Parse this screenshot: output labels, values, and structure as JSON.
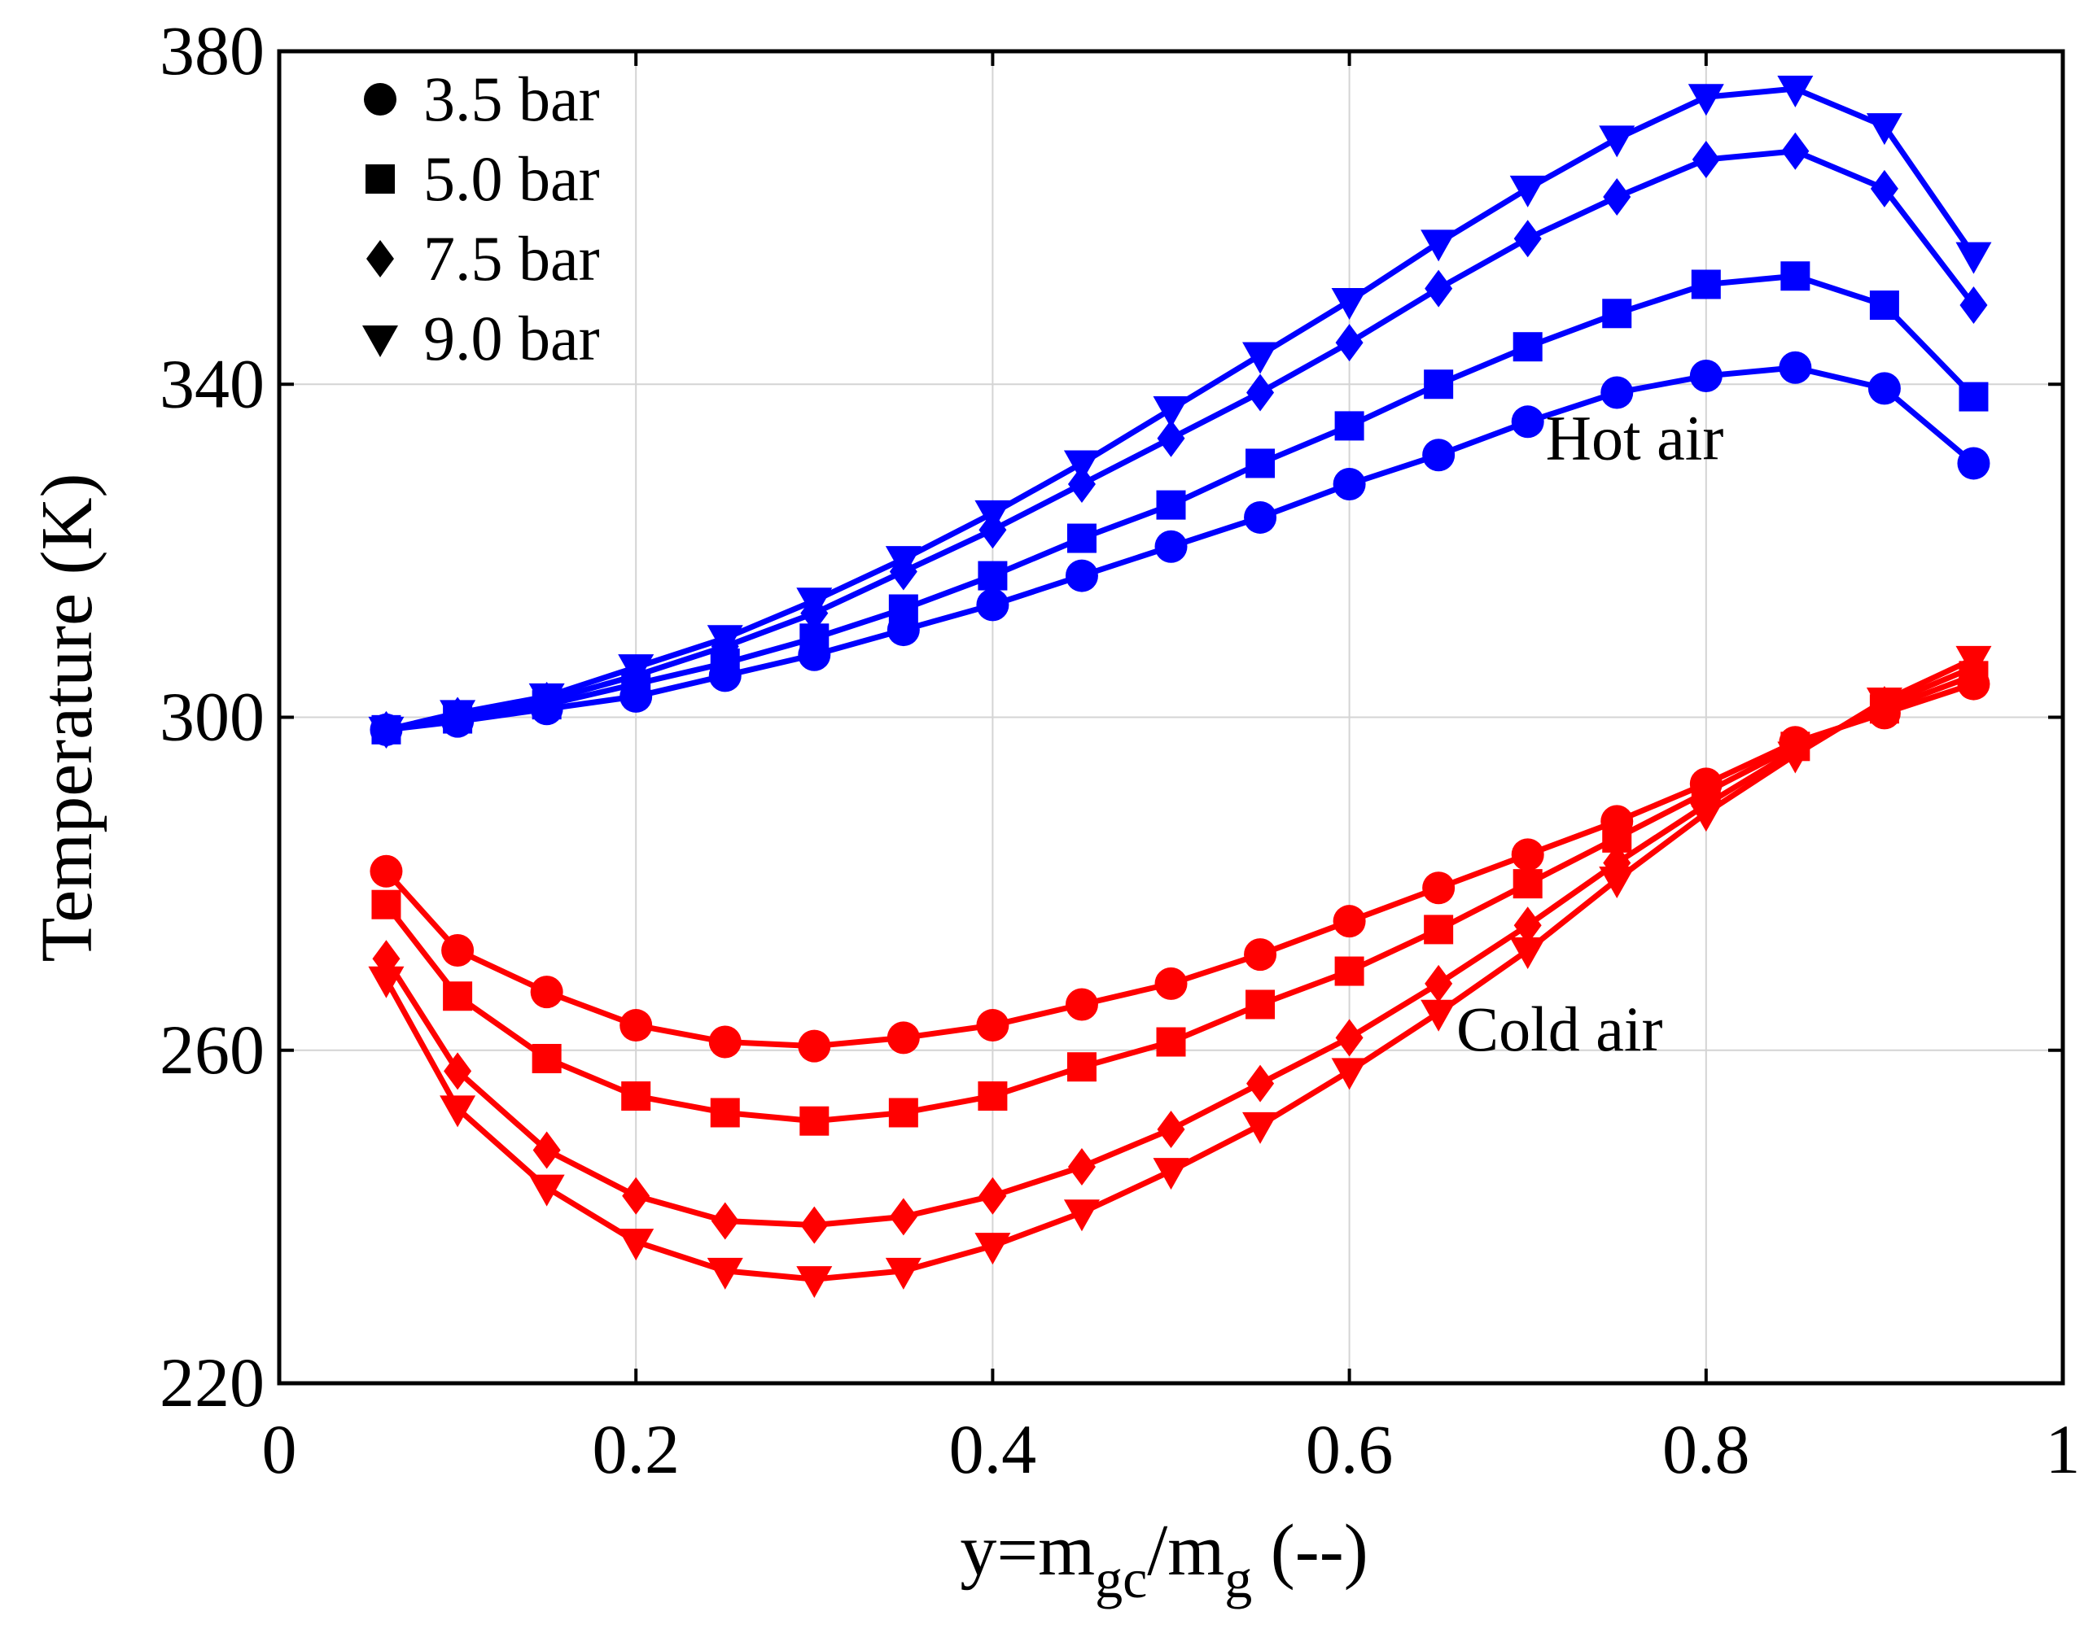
{
  "chart_data": {
    "type": "line",
    "title": "",
    "xlabel": "y=m_gc/m_g (--)",
    "xlabel_parts": {
      "main": "y=m",
      "sub1": "gc",
      "mid": "/m",
      "sub2": "g",
      "tail": " (--)"
    },
    "ylabel": "Temperature (K)",
    "xlim": [
      0,
      1
    ],
    "ylim": [
      220,
      380
    ],
    "xticks": [
      0,
      0.2,
      0.4,
      0.6,
      0.8,
      1
    ],
    "xtick_labels": [
      "0",
      "0.2",
      "0.4",
      "0.6",
      "0.8",
      "1"
    ],
    "yticks": [
      220,
      260,
      300,
      340,
      380
    ],
    "ytick_labels": [
      "220",
      "260",
      "300",
      "340",
      "380"
    ],
    "grid": true,
    "legend_position": "top-left",
    "x": [
      0.06,
      0.1,
      0.15,
      0.2,
      0.25,
      0.3,
      0.35,
      0.4,
      0.45,
      0.5,
      0.55,
      0.6,
      0.65,
      0.7,
      0.75,
      0.8,
      0.85,
      0.9,
      0.95
    ],
    "legend": [
      {
        "label": "3.5 bar",
        "marker": "circle"
      },
      {
        "label": "5.0 bar",
        "marker": "square"
      },
      {
        "label": "7.5 bar",
        "marker": "diamond"
      },
      {
        "label": "9.0 bar",
        "marker": "triangle-down"
      }
    ],
    "annotations": [
      {
        "text": "Hot air",
        "x": 0.71,
        "y": 331
      },
      {
        "text": "Cold air",
        "x": 0.66,
        "y": 260
      }
    ],
    "groups": [
      {
        "name": "hot",
        "color": "#0000ff",
        "series": [
          {
            "name": "3.5 bar",
            "marker": "circle",
            "values": [
              298.5,
              299.5,
              301,
              302.5,
              305,
              307.5,
              310.5,
              313.5,
              317,
              320.5,
              324,
              328,
              331.5,
              335.5,
              339,
              341,
              342,
              339.5,
              330.5
            ]
          },
          {
            "name": "5.0 bar",
            "marker": "square",
            "values": [
              298.5,
              299.8,
              301.5,
              304,
              306.5,
              309.5,
              313,
              317,
              321.5,
              325.5,
              330.5,
              335,
              340,
              344.5,
              348.5,
              352,
              353,
              349.5,
              338.5
            ]
          },
          {
            "name": "7.5 bar",
            "marker": "diamond",
            "values": [
              298.5,
              300.2,
              302,
              305,
              308.5,
              312.5,
              317.5,
              322.5,
              328,
              333.5,
              339,
              345,
              351.5,
              357.5,
              362.5,
              367,
              368,
              363.5,
              349.5
            ]
          },
          {
            "name": "9.0 bar",
            "marker": "triangle-down",
            "values": [
              298.5,
              300.5,
              302.5,
              306,
              309.5,
              314,
              319,
              324.5,
              330.5,
              337,
              343.5,
              350,
              357,
              363.5,
              369.5,
              374.5,
              375.5,
              371,
              355.5
            ]
          }
        ]
      },
      {
        "name": "cold",
        "color": "#ff0000",
        "series": [
          {
            "name": "3.5 bar",
            "marker": "circle",
            "values": [
              281.5,
              272,
              267,
              263,
              261,
              260.5,
              261.5,
              263,
              265.5,
              268,
              271.5,
              275.5,
              279.5,
              283.5,
              287.5,
              292,
              297,
              300.5,
              304
            ]
          },
          {
            "name": "5.0 bar",
            "marker": "square",
            "values": [
              277.5,
              266.5,
              259,
              254.5,
              252.5,
              251.5,
              252.5,
              254.5,
              258,
              261,
              265.5,
              269.5,
              274.5,
              280,
              285.5,
              291,
              296.5,
              301,
              305
            ]
          },
          {
            "name": "7.5 bar",
            "marker": "diamond",
            "values": [
              271,
              257.5,
              248,
              242.5,
              239.5,
              239,
              240,
              242.5,
              246,
              250.5,
              256,
              261.5,
              268,
              275,
              282.5,
              289.5,
              296,
              301.5,
              306
            ]
          },
          {
            "name": "9.0 bar",
            "marker": "triangle-down",
            "values": [
              268.5,
              253,
              243.5,
              237,
              233.5,
              232.5,
              233.5,
              236.5,
              240.5,
              245.5,
              251,
              257.5,
              264.5,
              272,
              280.5,
              288.5,
              295.5,
              302,
              307
            ]
          }
        ]
      }
    ]
  }
}
